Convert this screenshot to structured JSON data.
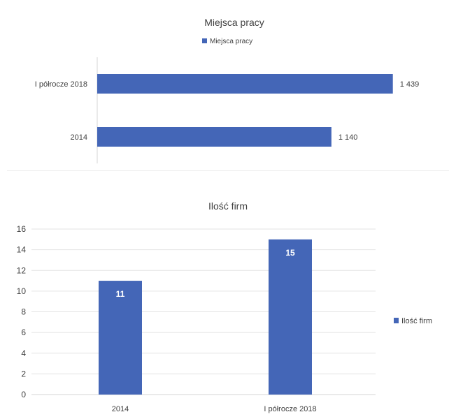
{
  "colors": {
    "bar": "#4466b7",
    "grid": "#e3e3e3",
    "axis": "#d4d4d4",
    "text": "#404040"
  },
  "chart_data": [
    {
      "type": "bar",
      "orientation": "horizontal",
      "title": "Miejsca pracy",
      "legend": [
        "Miejsca pracy"
      ],
      "legend_position": "top",
      "categories": [
        "I półrocze 2018",
        "2014"
      ],
      "series": [
        {
          "name": "Miejsca pracy",
          "values": [
            1439,
            1140
          ],
          "labels": [
            "1 439",
            "1 140"
          ]
        }
      ],
      "xlim": [
        0,
        1600
      ],
      "grid": false
    },
    {
      "type": "bar",
      "orientation": "vertical",
      "title": "Ilość firm",
      "legend": [
        "Ilość firm"
      ],
      "legend_position": "right",
      "categories": [
        "2014",
        "I półrocze 2018"
      ],
      "series": [
        {
          "name": "Ilość firm",
          "values": [
            11,
            15
          ]
        }
      ],
      "ylim": [
        0,
        16
      ],
      "yticks": [
        0,
        2,
        4,
        6,
        8,
        10,
        12,
        14,
        16
      ],
      "grid": true
    }
  ]
}
